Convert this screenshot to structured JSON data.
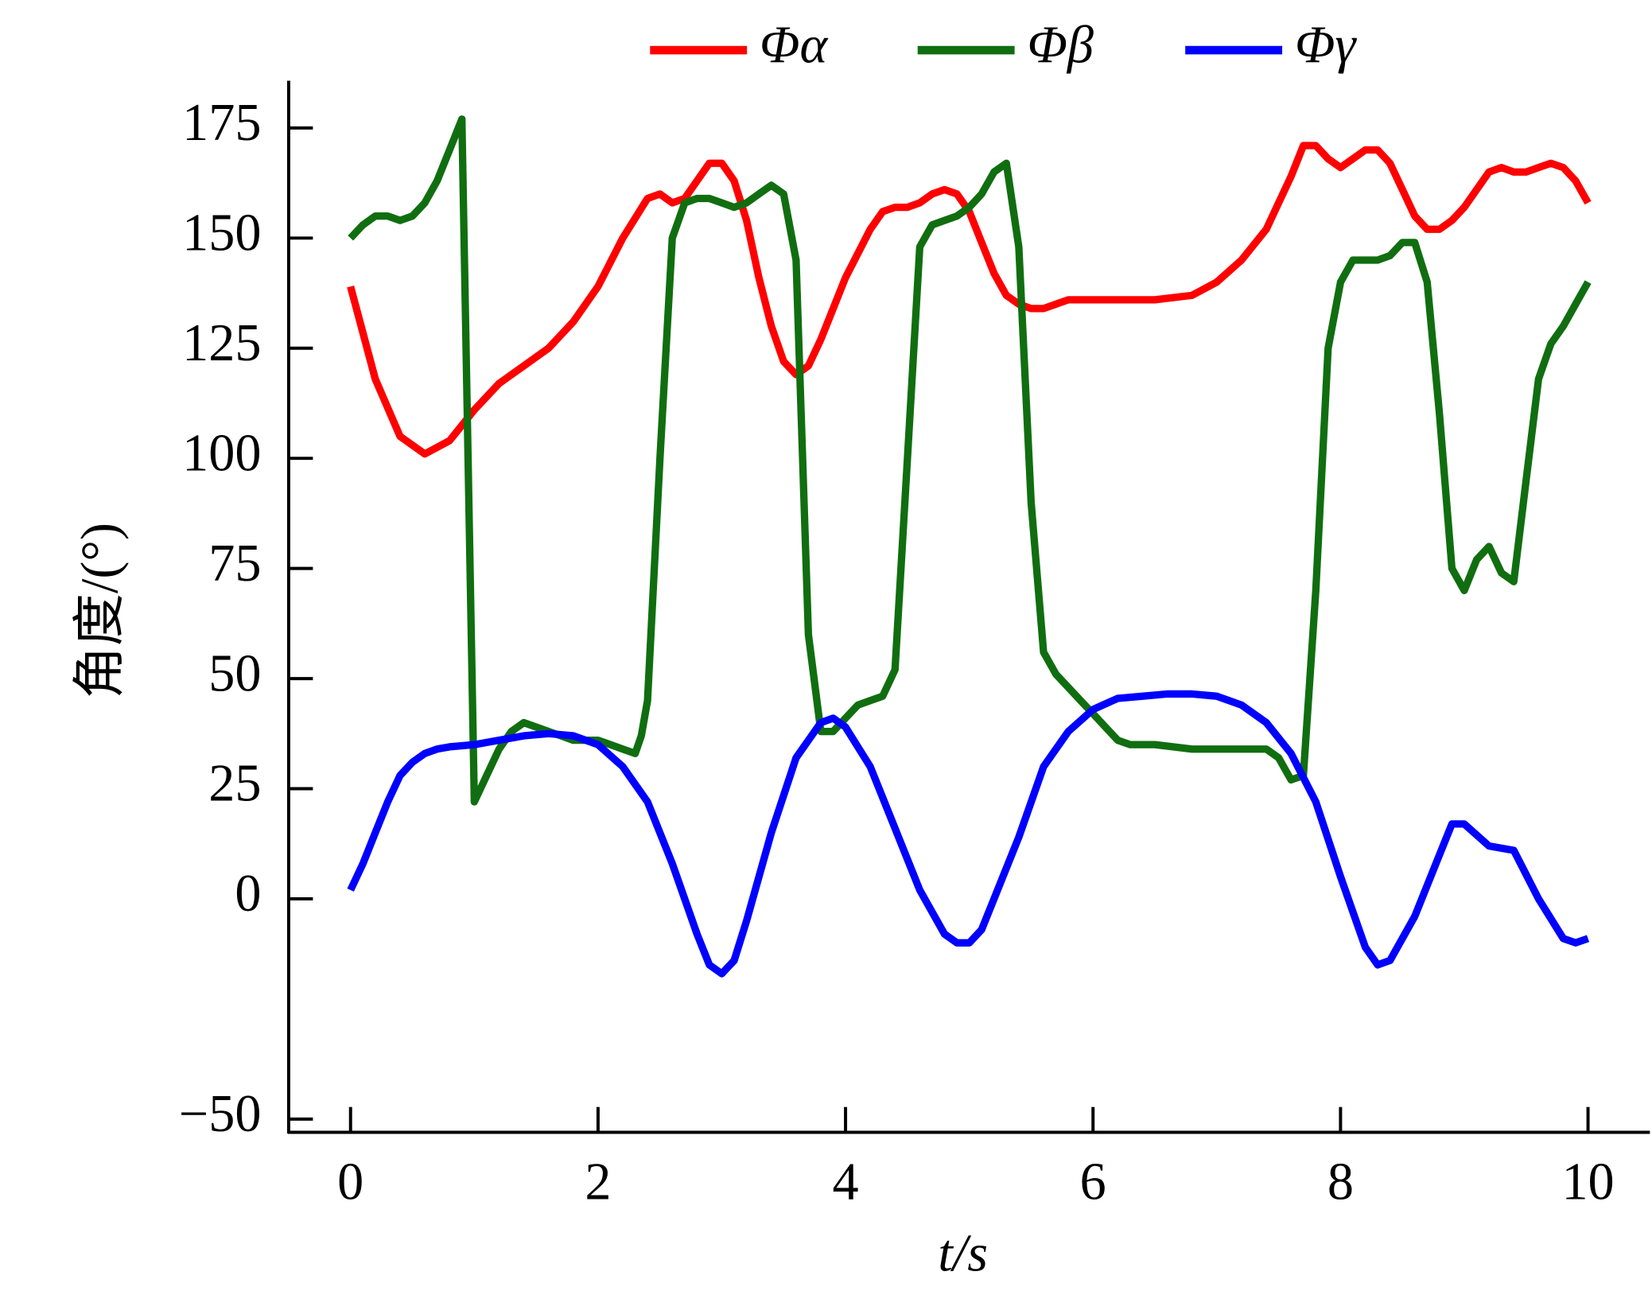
{
  "chart_data": {
    "type": "line",
    "xlabel": "t/s",
    "ylabel": "角度/(°)",
    "xlim": [
      -0.5,
      10.5
    ],
    "xticks": [
      0,
      2,
      4,
      6,
      8,
      10
    ],
    "ylim": [
      -53,
      185
    ],
    "yticks": [
      {
        "value": -50,
        "label": "−50"
      },
      0,
      25,
      50,
      75,
      100,
      125,
      150,
      175
    ],
    "legend": "top",
    "series": [
      {
        "name": "Φα",
        "color": "#ff0000",
        "x": [
          0,
          0.2,
          0.4,
          0.6,
          0.8,
          1.0,
          1.2,
          1.4,
          1.6,
          1.8,
          2.0,
          2.2,
          2.4,
          2.5,
          2.6,
          2.7,
          2.8,
          2.9,
          3.0,
          3.1,
          3.2,
          3.3,
          3.4,
          3.5,
          3.6,
          3.7,
          3.8,
          3.9,
          4.0,
          4.2,
          4.3,
          4.4,
          4.5,
          4.6,
          4.7,
          4.8,
          4.9,
          5.0,
          5.1,
          5.2,
          5.3,
          5.4,
          5.5,
          5.6,
          5.7,
          5.8,
          6.0,
          6.5,
          6.8,
          7.0,
          7.2,
          7.4,
          7.5,
          7.6,
          7.7,
          7.8,
          7.9,
          8.0,
          8.1,
          8.2,
          8.3,
          8.4,
          8.5,
          8.6,
          8.7,
          8.8,
          8.9,
          9.0,
          9.1,
          9.2,
          9.3,
          9.4,
          9.5,
          9.6,
          9.7,
          9.8,
          9.9,
          10.0
        ],
        "values": [
          139,
          118,
          105,
          101,
          104,
          111,
          117,
          121,
          125,
          131,
          139,
          150,
          159,
          160,
          158,
          159,
          163,
          167,
          167,
          163,
          154,
          141,
          130,
          122,
          119,
          121,
          127,
          134,
          141,
          152,
          156,
          157,
          157,
          158,
          160,
          161,
          160,
          156,
          149,
          142,
          137,
          135,
          134,
          134,
          135,
          136,
          136,
          136,
          137,
          140,
          145,
          152,
          158,
          164,
          171,
          171,
          168,
          166,
          168,
          170,
          170,
          167,
          161,
          155,
          152,
          152,
          154,
          157,
          161,
          165,
          166,
          165,
          165,
          166,
          167,
          166,
          163,
          158
        ]
      },
      {
        "name": "Φβ",
        "color": "#106e10",
        "x": [
          0,
          0.1,
          0.2,
          0.3,
          0.4,
          0.5,
          0.6,
          0.7,
          0.8,
          0.9,
          1.0,
          1.1,
          1.2,
          1.3,
          1.4,
          1.5,
          1.6,
          1.7,
          1.8,
          1.9,
          2.0,
          2.1,
          2.2,
          2.3,
          2.35,
          2.4,
          2.5,
          2.6,
          2.7,
          2.8,
          2.9,
          3.0,
          3.1,
          3.2,
          3.3,
          3.4,
          3.5,
          3.6,
          3.7,
          3.8,
          3.9,
          4.0,
          4.1,
          4.2,
          4.3,
          4.4,
          4.5,
          4.6,
          4.7,
          4.8,
          4.9,
          5.0,
          5.1,
          5.2,
          5.3,
          5.4,
          5.5,
          5.6,
          5.7,
          5.8,
          5.9,
          6.0,
          6.1,
          6.2,
          6.3,
          6.5,
          6.8,
          7.0,
          7.2,
          7.4,
          7.5,
          7.6,
          7.7,
          7.8,
          7.9,
          8.0,
          8.1,
          8.2,
          8.3,
          8.4,
          8.5,
          8.6,
          8.7,
          8.8,
          8.9,
          9.0,
          9.1,
          9.2,
          9.3,
          9.4,
          9.5,
          9.6,
          9.7,
          9.8,
          9.9,
          10.0
        ],
        "values": [
          150,
          153,
          155,
          155,
          154,
          155,
          158,
          163,
          170,
          177,
          22,
          28,
          34,
          38,
          40,
          39,
          38,
          37,
          36,
          36,
          36,
          35,
          34,
          33,
          37,
          45,
          100,
          150,
          158,
          159,
          159,
          158,
          157,
          158,
          160,
          162,
          160,
          145,
          60,
          38,
          38,
          41,
          44,
          45,
          46,
          52,
          100,
          148,
          153,
          154,
          155,
          157,
          160,
          165,
          167,
          148,
          90,
          56,
          51,
          48,
          45,
          42,
          39,
          36,
          35,
          35,
          34,
          34,
          34,
          34,
          32,
          27,
          28,
          70,
          125,
          140,
          145,
          145,
          145,
          146,
          149,
          149,
          140,
          110,
          75,
          70,
          77,
          80,
          74,
          72,
          95,
          118,
          126,
          130,
          135,
          140
        ]
      },
      {
        "name": "Φγ",
        "color": "#0000ff",
        "x": [
          0,
          0.1,
          0.2,
          0.3,
          0.4,
          0.5,
          0.6,
          0.7,
          0.8,
          1.0,
          1.2,
          1.4,
          1.6,
          1.8,
          2.0,
          2.2,
          2.4,
          2.6,
          2.8,
          2.9,
          3.0,
          3.1,
          3.2,
          3.4,
          3.6,
          3.8,
          3.9,
          4.0,
          4.2,
          4.4,
          4.6,
          4.8,
          4.9,
          5.0,
          5.1,
          5.2,
          5.4,
          5.6,
          5.8,
          6.0,
          6.2,
          6.4,
          6.6,
          6.8,
          7.0,
          7.2,
          7.4,
          7.6,
          7.8,
          8.0,
          8.2,
          8.3,
          8.4,
          8.6,
          8.8,
          8.9,
          9.0,
          9.2,
          9.4,
          9.6,
          9.8,
          9.9,
          10.0
        ],
        "values": [
          2,
          8,
          15,
          22,
          28,
          31,
          33,
          34,
          34.5,
          35,
          36,
          37,
          37.5,
          37,
          35,
          30,
          22,
          8,
          -8,
          -15,
          -17,
          -14,
          -5,
          15,
          32,
          40,
          41,
          39,
          30,
          16,
          2,
          -8,
          -10,
          -10,
          -7,
          0,
          14,
          30,
          38,
          43,
          45.5,
          46,
          46.5,
          46.5,
          46,
          44,
          40,
          33,
          22,
          5,
          -11,
          -15,
          -14,
          -4,
          10,
          17,
          17,
          12,
          11,
          0,
          -9,
          -10,
          -9
        ]
      }
    ]
  }
}
